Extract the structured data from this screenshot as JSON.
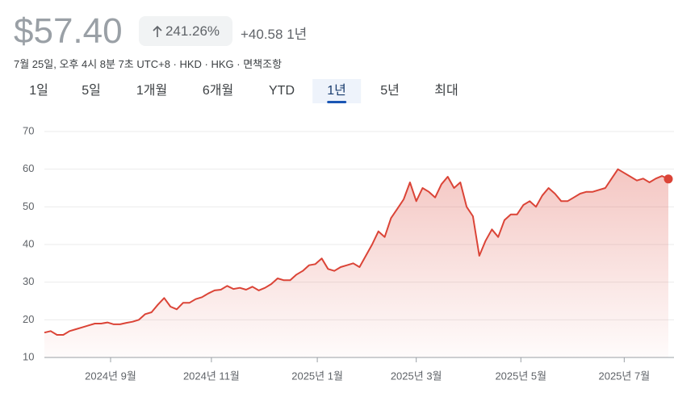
{
  "header": {
    "price": "$57.40",
    "change_pct": "241.26%",
    "change": "+40.58",
    "period": "1년",
    "subtitle": "7월 25일, 오후 4시 8분 7초 UTC+8 · HKD · HKG · 면책조항"
  },
  "tabs": [
    "1일",
    "5일",
    "1개월",
    "6개월",
    "YTD",
    "1년",
    "5년",
    "최대"
  ],
  "selected_tab": 5,
  "chart_data": {
    "type": "line",
    "color": "#db4437",
    "grid": true,
    "ylim": [
      10,
      70
    ],
    "yticks": [
      10,
      20,
      30,
      40,
      50,
      60,
      70
    ],
    "xlim": [
      0,
      99
    ],
    "xticks": [
      {
        "value": 10.5,
        "label": "2024년 9월"
      },
      {
        "value": 26.5,
        "label": "2024년 11월"
      },
      {
        "value": 43.3,
        "label": "2025년 1월"
      },
      {
        "value": 59,
        "label": "2025년 3월"
      },
      {
        "value": 75.6,
        "label": "2025년 5월"
      },
      {
        "value": 92,
        "label": "2025년 7월"
      }
    ],
    "values": [
      16.6,
      17,
      16,
      16,
      17,
      17.5,
      18,
      18.5,
      19,
      19,
      19.3,
      18.8,
      18.8,
      19.2,
      19.5,
      20,
      21.5,
      22,
      24,
      25.8,
      23.5,
      22.8,
      24.5,
      24.5,
      25.5,
      26,
      27,
      27.8,
      28,
      29,
      28.2,
      28.5,
      28,
      28.8,
      27.8,
      28.5,
      29.5,
      31,
      30.5,
      30.5,
      32,
      33,
      34.5,
      34.8,
      36.3,
      33.5,
      33,
      34,
      34.5,
      35,
      34,
      37,
      40,
      43.5,
      42,
      47,
      49.5,
      52,
      56.5,
      51.5,
      55,
      54,
      52.5,
      56,
      58,
      55,
      56.5,
      50,
      47.5,
      37,
      41,
      44,
      42,
      46.5,
      48,
      48,
      50.5,
      51.5,
      50,
      53,
      55,
      53.5,
      51.5,
      51.5,
      52.5,
      53.5,
      54,
      54,
      54.5,
      55,
      57.5,
      60,
      59,
      58,
      57,
      57.5,
      56.5,
      57.5,
      58.2,
      57.4
    ]
  }
}
